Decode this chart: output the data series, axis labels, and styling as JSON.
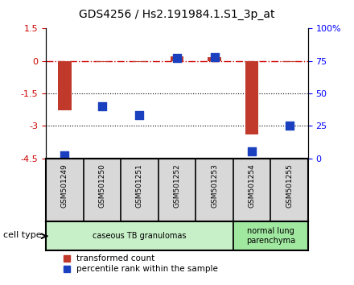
{
  "title": "GDS4256 / Hs2.191984.1.S1_3p_at",
  "samples": [
    "GSM501249",
    "GSM501250",
    "GSM501251",
    "GSM501252",
    "GSM501253",
    "GSM501254",
    "GSM501255"
  ],
  "transformed_count": [
    -2.3,
    -0.05,
    -0.05,
    0.2,
    0.18,
    -3.4,
    -0.05
  ],
  "percentile_rank": [
    2,
    40,
    33,
    77,
    78,
    5,
    25
  ],
  "ylim_left": [
    -4.5,
    1.5
  ],
  "ylim_right": [
    0,
    100
  ],
  "yticks_left": [
    1.5,
    0,
    -1.5,
    -3,
    -4.5
  ],
  "yticks_right": [
    100,
    75,
    50,
    25,
    0
  ],
  "ytick_labels_left": [
    "1.5",
    "0",
    "-1.5",
    "-3",
    "-4.5"
  ],
  "ytick_labels_right": [
    "100%",
    "75",
    "50",
    "25",
    "0"
  ],
  "hlines": [
    0,
    -1.5,
    -3
  ],
  "bar_color": "#c0392b",
  "point_color": "#1a3fbf",
  "bar_width": 0.35,
  "point_size": 60,
  "cell_type_groups": [
    {
      "label": "caseous TB granulomas",
      "indices": [
        0,
        1,
        2,
        3,
        4
      ],
      "color": "#c8f0c8"
    },
    {
      "label": "normal lung\nparenchyma",
      "indices": [
        5,
        6
      ],
      "color": "#a0e8a0"
    }
  ],
  "legend_labels": [
    "transformed count",
    "percentile rank within the sample"
  ],
  "cell_type_label": "cell type",
  "bg_color": "#ffffff"
}
